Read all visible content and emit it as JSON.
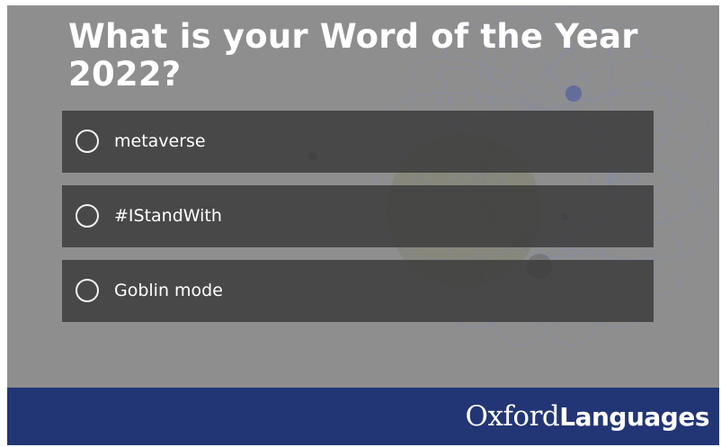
{
  "poll": {
    "question": "What is your Word of the Year 2022?",
    "options": [
      {
        "label": "metaverse",
        "selected": false
      },
      {
        "label": "#IStandWith",
        "selected": false
      },
      {
        "label": "Goblin mode",
        "selected": false
      }
    ]
  },
  "footer": {
    "brand_oxford": "Oxford",
    "brand_languages": "Languages",
    "background_color": "#223575"
  },
  "colors": {
    "panel_background": "#8e8e8e",
    "option_background": "#3a3a3a",
    "text": "#ffffff"
  },
  "icons": {
    "option_marker": "radio-circle-icon",
    "background": "spirograph-decoration"
  }
}
